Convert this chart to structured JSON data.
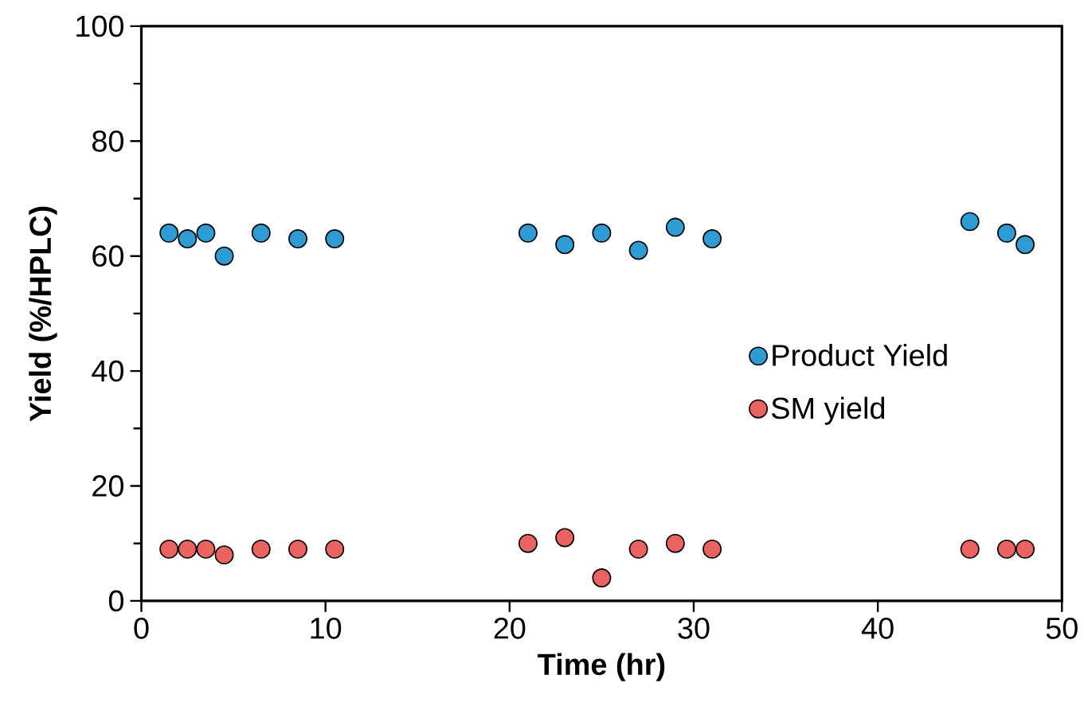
{
  "chart_data": {
    "type": "scatter",
    "xlabel": "Time (hr)",
    "ylabel": "Yield (%/HPLC)",
    "xlim": [
      0,
      50
    ],
    "xticks": [
      0,
      10,
      20,
      30,
      40,
      50
    ],
    "ylim": [
      0,
      100
    ],
    "yticks": [
      0,
      20,
      40,
      60,
      80,
      100
    ],
    "x": [
      1.5,
      2.5,
      3.5,
      4.5,
      6.5,
      8.5,
      10.5,
      21,
      23,
      25,
      27,
      29,
      31,
      45,
      47,
      48
    ],
    "series": [
      {
        "name": "Product Yield",
        "color": "#2e9bd3",
        "values": [
          64,
          63,
          64,
          60,
          64,
          63,
          63,
          64,
          62,
          64,
          61,
          65,
          63,
          66,
          64,
          62
        ]
      },
      {
        "name": "SM yield",
        "color": "#ea6360",
        "values": [
          9,
          9,
          9,
          8,
          9,
          9,
          9,
          10,
          11,
          4,
          9,
          10,
          9,
          9,
          9,
          9
        ]
      }
    ],
    "marker": "circle",
    "grid": false,
    "legend": "right"
  }
}
